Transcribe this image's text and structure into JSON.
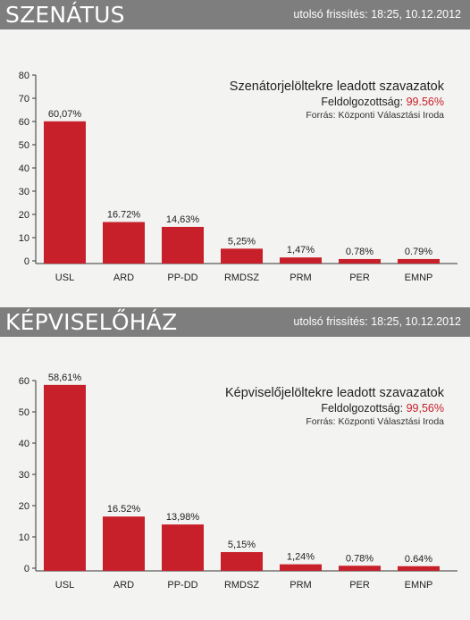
{
  "colors": {
    "bar": "#c8202a",
    "banner": "#7e7e7e",
    "axis": "#333333",
    "accent": "#c8202a"
  },
  "sections": [
    {
      "banner_title": "SZENÁTUS",
      "update_text": "utolsó frissítés: 18:25, 10.12.2012",
      "legend_title": "Szenátorjelöltekre leadott szavazatok",
      "progress_label": "Feldolgozottság:",
      "progress_value": "99.56%",
      "source": "Forrás: Központi Választási Iroda"
    },
    {
      "banner_title": "KÉPVISELŐHÁZ",
      "update_text": "utolsó frissítés: 18:25, 10.12.2012",
      "legend_title": "Képviselőjelöltekre leadott szavazatok",
      "progress_label": "Feldolgozottság:",
      "progress_value": "99,56%",
      "source": "Forrás: Központi Választási Iroda"
    }
  ],
  "chart_data": [
    {
      "type": "bar",
      "categories": [
        "USL",
        "ARD",
        "PP-DD",
        "RMDSZ",
        "PRM",
        "PER",
        "EMNP"
      ],
      "values": [
        60.07,
        16.72,
        14.63,
        5.25,
        1.47,
        0.78,
        0.79
      ],
      "value_labels": [
        "60,07%",
        "16.72%",
        "14,63%",
        "5,25%",
        "1,47%",
        "0.78%",
        "0.79%"
      ],
      "yticks": [
        0,
        10,
        20,
        30,
        40,
        50,
        60,
        70,
        80
      ],
      "ylim": [
        0,
        80
      ],
      "title": "Szenátorjelöltekre leadott szavazatok",
      "xlabel": "",
      "ylabel": "",
      "grid": false
    },
    {
      "type": "bar",
      "categories": [
        "USL",
        "ARD",
        "PP-DD",
        "RMDSZ",
        "PRM",
        "PER",
        "EMNP"
      ],
      "values": [
        58.61,
        16.52,
        13.98,
        5.15,
        1.24,
        0.78,
        0.64
      ],
      "value_labels": [
        "58,61%",
        "16.52%",
        "13,98%",
        "5,15%",
        "1,24%",
        "0.78%",
        "0.64%"
      ],
      "yticks": [
        0,
        10,
        20,
        30,
        40,
        50,
        60
      ],
      "ylim": [
        0,
        60
      ],
      "title": "Képviselőjelöltekre leadott szavazatok",
      "xlabel": "",
      "ylabel": "",
      "grid": false
    }
  ]
}
